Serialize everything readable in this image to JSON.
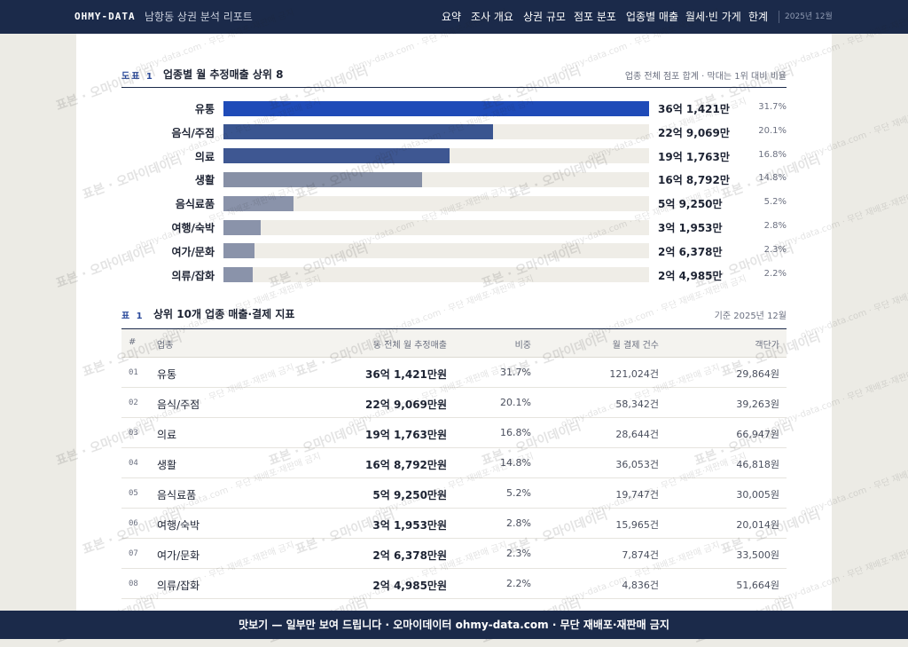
{
  "nav": {
    "brand": "OHMY-DATA",
    "report_title": "남항동 상권 분석 리포트",
    "items": [
      "요약",
      "조사 개요",
      "상권 규모",
      "점포 분포",
      "업종별 매출",
      "월세·빈 가게",
      "한계"
    ],
    "date": "2025년 12월"
  },
  "chart_data": {
    "type": "bar",
    "figure_label": "도표 1",
    "title": "업종별 월 추정매출 상위 8",
    "note": "업종 전체 점포 합계 · 막대는 1위 대비 비율",
    "categories": [
      "유통",
      "음식/주점",
      "의료",
      "생활",
      "음식료품",
      "여행/숙박",
      "여가/문화",
      "의류/잡화"
    ],
    "values": [
      361421,
      229069,
      191763,
      168792,
      59250,
      31953,
      26378,
      24985
    ],
    "value_labels": [
      "36억 1,421만",
      "22억 9,069만",
      "19억 1,763만",
      "16억 8,792만",
      "5억 9,250만",
      "3억 1,953만",
      "2억 6,378만",
      "2억 4,985만"
    ],
    "shares": [
      31.7,
      20.1,
      16.8,
      14.8,
      5.2,
      2.8,
      2.3,
      2.2
    ],
    "share_labels": [
      "31.7%",
      "20.1%",
      "16.8%",
      "14.8%",
      "5.2%",
      "2.8%",
      "2.3%",
      "2.2%"
    ],
    "colors": [
      "#1f4bb8",
      "#3a5590",
      "#3e5792",
      "#8790a6",
      "#8a93aa",
      "#8a93aa",
      "#8a93aa",
      "#8a93aa"
    ]
  },
  "table": {
    "label": "표 1",
    "title": "상위 10개 업종 매출·결제 지표",
    "note": "기준 2025년 12월",
    "columns": [
      "#",
      "업종",
      "동 전체 월 추정매출",
      "비중",
      "월 결제 건수",
      "객단가"
    ],
    "rows": [
      [
        "01",
        "유통",
        "36억 1,421만원",
        "31.7%",
        "121,024건",
        "29,864원"
      ],
      [
        "02",
        "음식/주점",
        "22억 9,069만원",
        "20.1%",
        "58,342건",
        "39,263원"
      ],
      [
        "03",
        "의료",
        "19억 1,763만원",
        "16.8%",
        "28,644건",
        "66,947원"
      ],
      [
        "04",
        "생활",
        "16억 8,792만원",
        "14.8%",
        "36,053건",
        "46,818원"
      ],
      [
        "05",
        "음식료품",
        "5억 9,250만원",
        "5.2%",
        "19,747건",
        "30,005원"
      ],
      [
        "06",
        "여행/숙박",
        "3억 1,953만원",
        "2.8%",
        "15,965건",
        "20,014원"
      ],
      [
        "07",
        "여가/문화",
        "2억 6,378만원",
        "2.3%",
        "7,874건",
        "33,500원"
      ],
      [
        "08",
        "의류/잡화",
        "2억 4,985만원",
        "2.2%",
        "4,836건",
        "51,664원"
      ]
    ]
  },
  "footer": "맛보기 — 일부만 보여 드립니다 · 오마이데이터 ohmy-data.com · 무단 재배포·재판매 금지",
  "watermark": [
    "표본 · 오마이데이터",
    "ohmy-data.com · 무단 재배포·재판매 금지"
  ]
}
